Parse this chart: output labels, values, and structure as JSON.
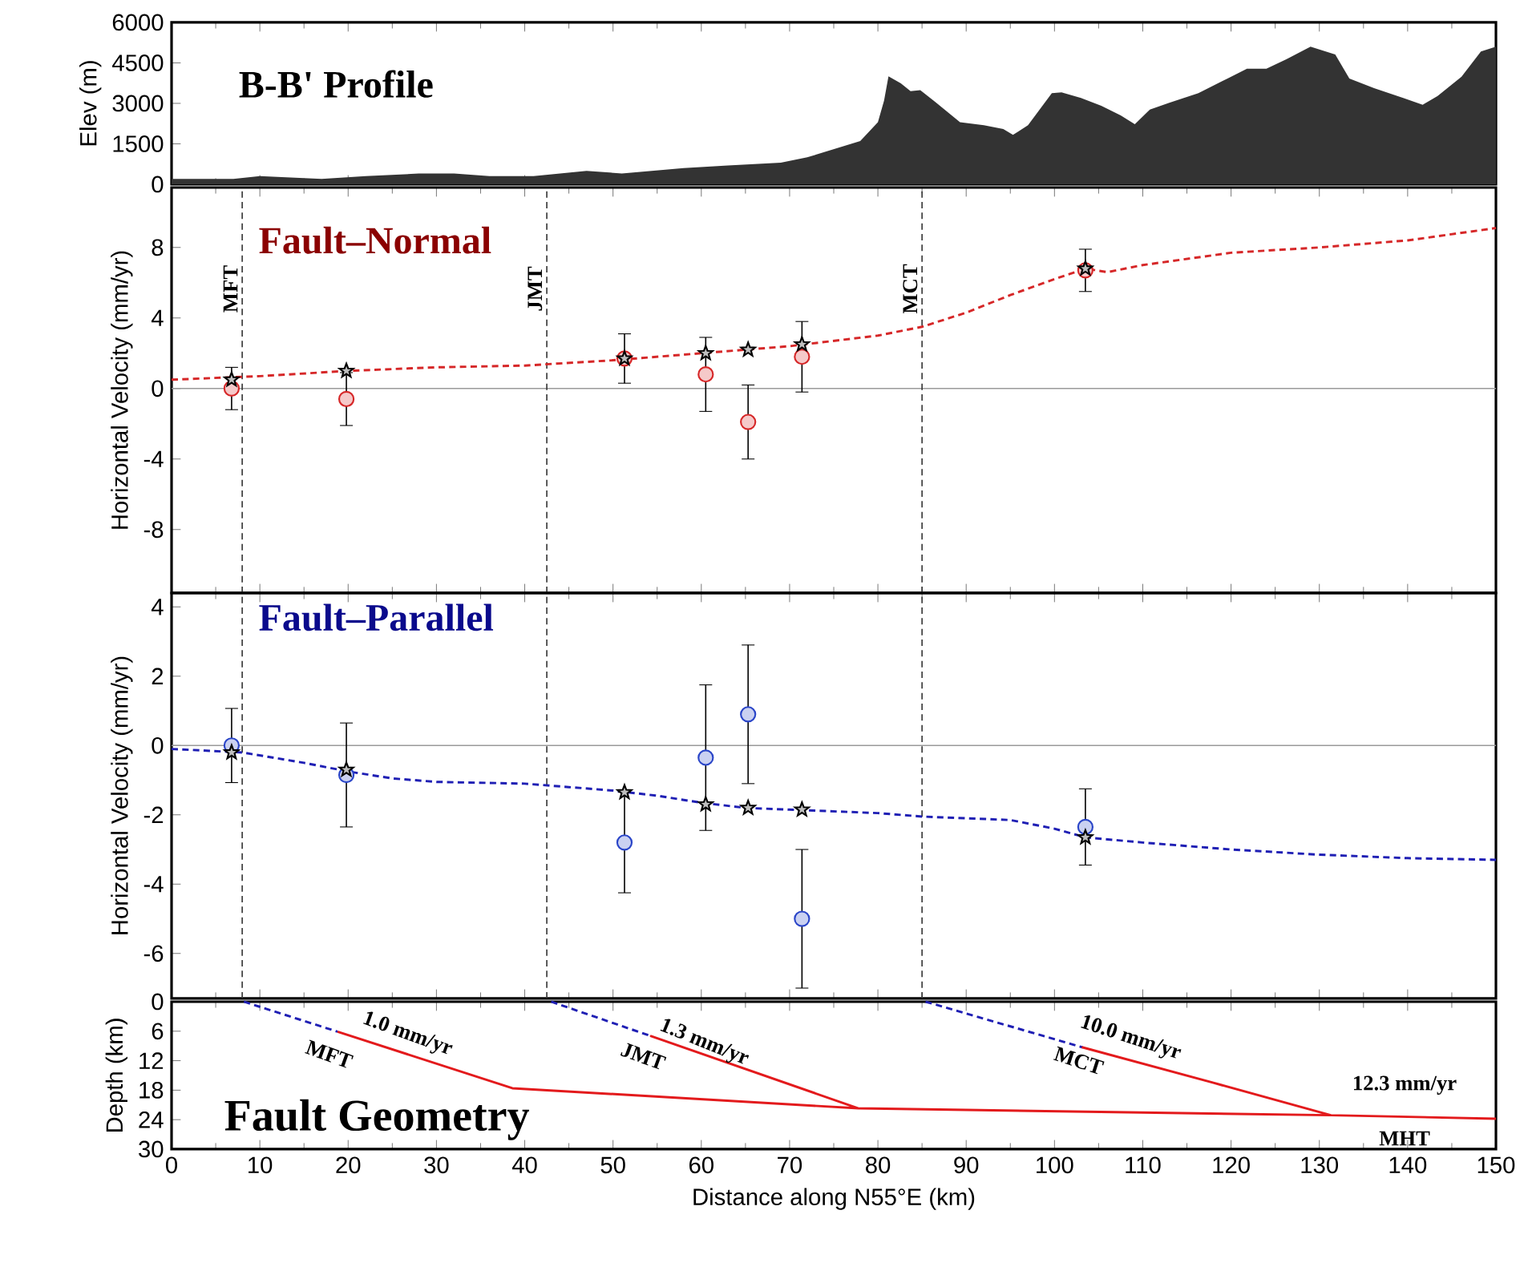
{
  "chart_data": [
    {
      "type": "area",
      "title": "B-B' Profile",
      "ylabel": "Elev (m)",
      "xlim": [
        0,
        150
      ],
      "xticks": [
        0,
        10,
        20,
        30,
        40,
        50,
        60,
        70,
        80,
        90,
        100,
        110,
        120,
        130,
        140,
        150
      ],
      "ylim": [
        0,
        6000
      ],
      "yticks": [
        0,
        1500,
        3000,
        4500,
        6000
      ],
      "tick_labels": "y",
      "series": [
        {
          "color": "#333333",
          "x": [
            0,
            7,
            10,
            17,
            22,
            28,
            32,
            36,
            41,
            47,
            51,
            58,
            63,
            69,
            72,
            75,
            78,
            80,
            80.7,
            81.2,
            82.6,
            83.7,
            84.8,
            86.5,
            89.3,
            92,
            94.2,
            95.3,
            97,
            99.7,
            100.8,
            103,
            105.3,
            107.5,
            109.1,
            110.8,
            113,
            116.3,
            119.6,
            121.8,
            124,
            126.3,
            129,
            131.8,
            133.4,
            136.2,
            139.5,
            141.7,
            143.4,
            146.1,
            148.3,
            150
          ],
          "values": [
            200,
            200,
            300,
            200,
            300,
            400,
            400,
            300,
            300,
            500,
            400,
            600,
            700,
            800,
            1000,
            1300,
            1600,
            2300,
            3100,
            4000,
            3740,
            3450,
            3490,
            3050,
            2300,
            2190,
            2050,
            1830,
            2190,
            3380,
            3410,
            3200,
            2910,
            2550,
            2230,
            2770,
            3020,
            3380,
            3920,
            4280,
            4280,
            4640,
            5100,
            4810,
            3920,
            3560,
            3200,
            2950,
            3270,
            3990,
            4920,
            5100
          ]
        }
      ]
    },
    {
      "type": "scatter",
      "title": "Fault–Normal",
      "ylabel": "Horizontal Velocity (mm/yr)",
      "xlim": [
        0,
        150
      ],
      "xticks": [
        0,
        10,
        20,
        30,
        40,
        50,
        60,
        70,
        80,
        90,
        100,
        110,
        120,
        130,
        140,
        150
      ],
      "ylim": [
        -11.6,
        11.4
      ],
      "yticks": [
        -8,
        -4,
        0,
        4,
        8
      ],
      "tick_labels": "y",
      "ref_lines": [
        {
          "axis": "y",
          "value": 0,
          "color": "#999999",
          "line_style": "solid"
        },
        {
          "axis": "x",
          "value": 8,
          "label": "MFT",
          "color": "#333333",
          "line_style": "dashed"
        },
        {
          "axis": "x",
          "value": 42.5,
          "label": "JMT",
          "color": "#333333",
          "line_style": "dashed"
        },
        {
          "axis": "x",
          "value": 85,
          "label": "MCT",
          "color": "#333333",
          "line_style": "dashed"
        }
      ],
      "series": [
        {
          "type": "line",
          "color": "#d62728",
          "line_style": "dashed",
          "x": [
            0,
            10,
            20,
            30,
            40,
            50,
            60,
            70,
            80,
            85,
            90,
            95,
            100,
            103.5,
            106,
            110,
            120,
            130,
            140,
            150
          ],
          "values": [
            0.5,
            0.7,
            1.0,
            1.2,
            1.3,
            1.6,
            2.0,
            2.4,
            3.0,
            3.5,
            4.3,
            5.3,
            6.2,
            6.8,
            6.6,
            7.0,
            7.7,
            8.0,
            8.4,
            9.1
          ]
        },
        {
          "type": "scatter",
          "marker": "circle",
          "color": "#d62728",
          "x": [
            6.8,
            19.8,
            51.3,
            60.5,
            65.3,
            71.4,
            103.5
          ],
          "values": [
            0.0,
            -0.6,
            1.7,
            0.8,
            -1.9,
            1.8,
            6.7
          ],
          "errors": [
            1.2,
            1.5,
            1.4,
            2.1,
            2.1,
            2.0,
            1.2
          ]
        },
        {
          "type": "scatter",
          "marker": "star",
          "color": "#000000",
          "x": [
            6.8,
            19.8,
            51.3,
            60.5,
            65.3,
            71.4,
            103.5
          ],
          "values": [
            0.5,
            1.0,
            1.7,
            2.0,
            2.2,
            2.5,
            6.8
          ]
        }
      ]
    },
    {
      "type": "scatter",
      "title": "Fault–Parallel",
      "ylabel": "Horizontal Velocity (mm/yr)",
      "xlim": [
        0,
        150
      ],
      "xticks": [
        0,
        10,
        20,
        30,
        40,
        50,
        60,
        70,
        80,
        90,
        100,
        110,
        120,
        130,
        140,
        150
      ],
      "ylim": [
        -7.3,
        4.4
      ],
      "yticks": [
        -6,
        -4,
        -2,
        0,
        2,
        4
      ],
      "tick_labels": "y",
      "ref_lines": [
        {
          "axis": "y",
          "value": 0,
          "color": "#999999",
          "line_style": "solid"
        },
        {
          "axis": "x",
          "value": 8,
          "color": "#333333",
          "line_style": "dashed"
        },
        {
          "axis": "x",
          "value": 42.5,
          "color": "#333333",
          "line_style": "dashed"
        },
        {
          "axis": "x",
          "value": 85,
          "color": "#333333",
          "line_style": "dashed"
        }
      ],
      "series": [
        {
          "type": "line",
          "color": "#1f1fb4",
          "line_style": "dashed",
          "x": [
            0,
            8,
            15,
            20,
            25,
            30,
            40,
            45,
            50,
            55,
            60,
            65,
            70,
            80,
            85,
            90,
            95,
            100,
            103.5,
            110,
            120,
            130,
            140,
            150
          ],
          "values": [
            -0.1,
            -0.2,
            -0.5,
            -0.75,
            -0.95,
            -1.05,
            -1.1,
            -1.2,
            -1.3,
            -1.45,
            -1.65,
            -1.8,
            -1.85,
            -1.95,
            -2.05,
            -2.1,
            -2.15,
            -2.4,
            -2.65,
            -2.8,
            -3.0,
            -3.15,
            -3.25,
            -3.3
          ]
        },
        {
          "type": "scatter",
          "marker": "circle",
          "color": "#2a45c8",
          "x": [
            6.8,
            19.8,
            51.3,
            60.5,
            65.3,
            71.4,
            103.5
          ],
          "values": [
            0.0,
            -0.85,
            -2.8,
            -0.35,
            0.9,
            -5.0,
            -2.35
          ],
          "errors": [
            1.07,
            1.5,
            1.45,
            2.1,
            2.0,
            2.0,
            1.1
          ]
        },
        {
          "type": "scatter",
          "marker": "star",
          "color": "#000000",
          "x": [
            6.8,
            19.8,
            51.3,
            60.5,
            65.3,
            71.4,
            103.5
          ],
          "values": [
            -0.2,
            -0.7,
            -1.35,
            -1.7,
            -1.8,
            -1.85,
            -2.65
          ]
        }
      ]
    },
    {
      "type": "line",
      "title": "Fault Geometry",
      "xlabel": "Distance along N55°E (km)",
      "ylabel": "Depth (km)",
      "xlim": [
        0,
        150
      ],
      "xticks": [
        0,
        10,
        20,
        30,
        40,
        50,
        60,
        70,
        80,
        90,
        100,
        110,
        120,
        130,
        140,
        150
      ],
      "ylim": [
        30,
        0
      ],
      "yticks": [
        0,
        6,
        12,
        18,
        24,
        30
      ],
      "annotations": [
        "1.0 mm/yr",
        "MFT",
        "1.3 mm/yr",
        "JMT",
        "10.0 mm/yr",
        "MCT",
        "12.3 mm/yr",
        "MHT"
      ],
      "series": [
        {
          "color": "#1f1fb4",
          "line_style": "dashed",
          "x": [
            8.2,
            18.8
          ],
          "values": [
            0,
            6.1
          ]
        },
        {
          "color": "#1f1fb4",
          "line_style": "dashed",
          "x": [
            43,
            54.3
          ],
          "values": [
            0,
            7
          ]
        },
        {
          "color": "#1f1fb4",
          "line_style": "dashed",
          "x": [
            85.4,
            103.2
          ],
          "values": [
            0,
            9.3
          ]
        },
        {
          "color": "#e31a1c",
          "line_style": "solid",
          "x": [
            18.8,
            38.6,
            77.8,
            54.3,
            77.8,
            131.3,
            118,
            103.2,
            118,
            131.3,
            150
          ],
          "values": [
            6.1,
            17.6,
            21.7,
            7,
            21.7,
            23.1,
            16.5,
            9.3,
            16.5,
            23.1,
            23.8
          ]
        }
      ]
    }
  ]
}
